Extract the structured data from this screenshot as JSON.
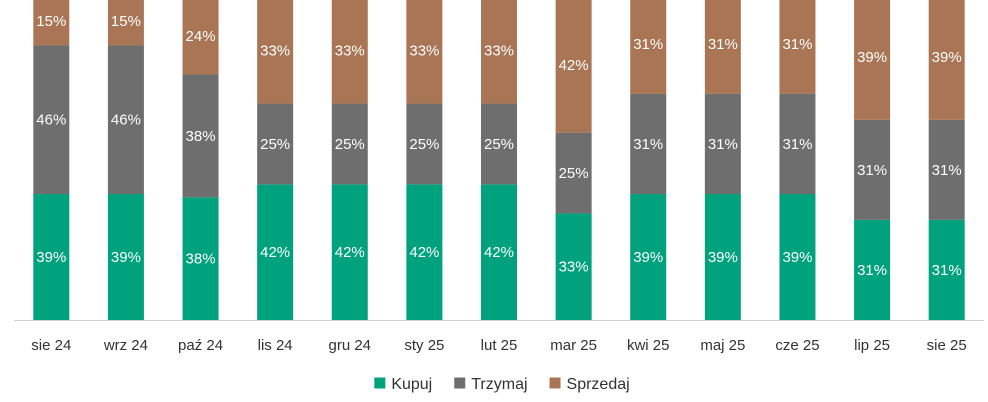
{
  "chart_data": {
    "type": "bar",
    "stacked": true,
    "title": "",
    "xlabel": "",
    "ylabel": "",
    "ylim": [
      0,
      100
    ],
    "categories": [
      "sie 24",
      "wrz 24",
      "paź 24",
      "lis 24",
      "gru 24",
      "sty 25",
      "lut 25",
      "mar 25",
      "kwi 25",
      "maj 25",
      "cze 25",
      "lip 25",
      "sie 25"
    ],
    "series": [
      {
        "name": "Kupuj",
        "color": "#00a27e",
        "values": [
          39,
          39,
          38,
          42,
          42,
          42,
          42,
          33,
          39,
          39,
          39,
          31,
          31
        ]
      },
      {
        "name": "Trzymaj",
        "color": "#6e6e6e",
        "values": [
          46,
          46,
          38,
          25,
          25,
          25,
          25,
          25,
          31,
          31,
          31,
          31,
          31
        ]
      },
      {
        "name": "Sprzedaj",
        "color": "#a97554",
        "values": [
          15,
          15,
          24,
          33,
          33,
          33,
          33,
          42,
          31,
          31,
          31,
          39,
          39
        ]
      }
    ],
    "value_suffix": "%",
    "legend_position": "bottom-center"
  }
}
